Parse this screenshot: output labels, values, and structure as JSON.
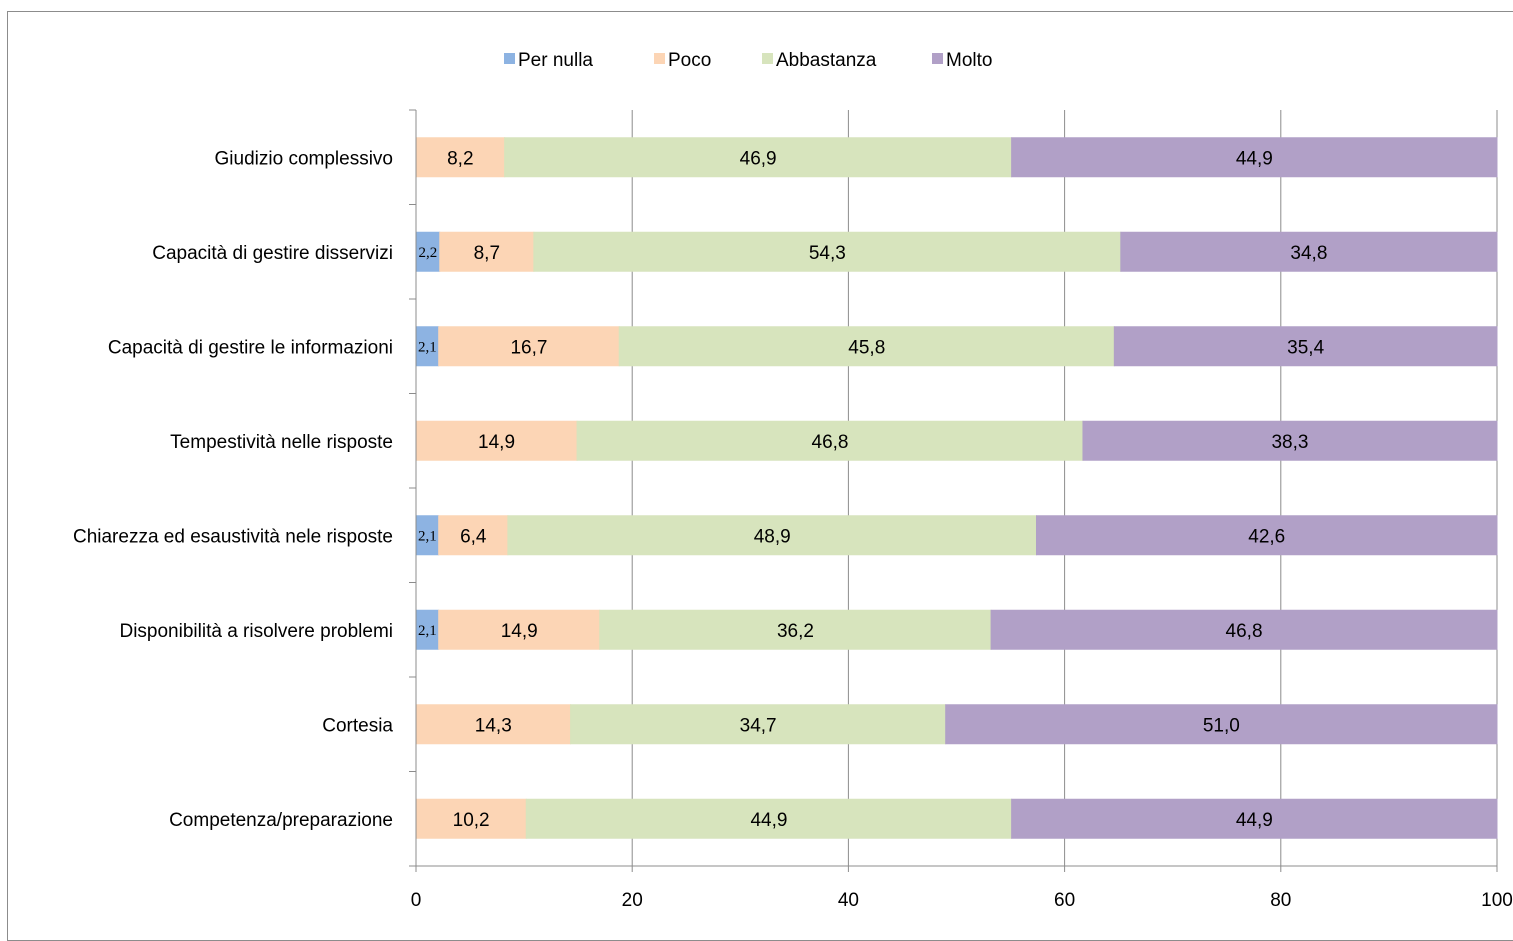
{
  "chart_data": {
    "type": "bar",
    "orientation": "horizontal",
    "stacked": true,
    "categories": [
      "Giudizio complessivo",
      "Capacità di gestire disservizi",
      "Capacità di gestire le informazioni",
      "Tempestività nelle risposte",
      "Chiarezza ed esaustività nele risposte",
      "Disponibilità a risolvere problemi",
      "Cortesia",
      "Competenza/preparazione"
    ],
    "series": [
      {
        "name": "Per nulla",
        "color": "#8db3e2",
        "values": [
          0,
          2.2,
          2.1,
          0,
          2.1,
          2.1,
          0,
          0
        ],
        "labels": [
          "",
          "2,2",
          "2,1",
          "",
          "2,1",
          "2,1",
          "",
          ""
        ]
      },
      {
        "name": "Poco",
        "color": "#fcd5b5",
        "values": [
          8.2,
          8.7,
          16.7,
          14.9,
          6.4,
          14.9,
          14.3,
          10.2
        ],
        "labels": [
          "8,2",
          "8,7",
          "16,7",
          "14,9",
          "6,4",
          "14,9",
          "14,3",
          "10,2"
        ]
      },
      {
        "name": "Abbastanza",
        "color": "#d7e4bd",
        "values": [
          46.9,
          54.3,
          45.8,
          46.8,
          48.9,
          36.2,
          34.7,
          44.9
        ],
        "labels": [
          "46,9",
          "54,3",
          "45,8",
          "46,8",
          "48,9",
          "36,2",
          "34,7",
          "44,9"
        ]
      },
      {
        "name": "Molto",
        "color": "#b1a0c7",
        "values": [
          44.9,
          34.8,
          35.4,
          38.3,
          42.6,
          46.8,
          51.0,
          44.9
        ],
        "labels": [
          "44,9",
          "34,8",
          "35,4",
          "38,3",
          "42,6",
          "46,8",
          "51,0",
          "44,9"
        ]
      }
    ],
    "x_ticks": [
      "0",
      "20",
      "40",
      "60",
      "80",
      "100"
    ],
    "xlim": [
      0,
      100
    ],
    "grid": true,
    "legend": "top"
  }
}
